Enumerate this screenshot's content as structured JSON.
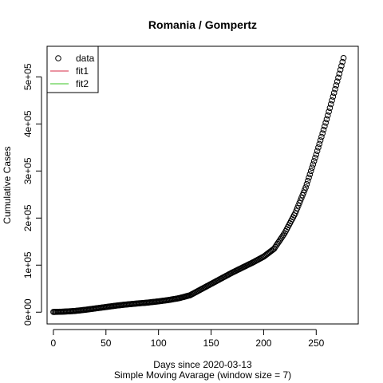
{
  "chart_data": {
    "type": "scatter",
    "title": "Romania / Gompertz",
    "xlabel": "Days since 2020-03-13",
    "sublabel": "Simple Moving Avarage (window size = 7)",
    "ylabel": "Cumulative Cases",
    "xlim": [
      -6,
      290
    ],
    "ylim": [
      -25000,
      565000
    ],
    "xticks": [
      0,
      50,
      100,
      150,
      200,
      250
    ],
    "xtick_labels": [
      "0",
      "50",
      "100",
      "150",
      "200",
      "250"
    ],
    "yticks": [
      0,
      100000,
      200000,
      300000,
      400000,
      500000
    ],
    "ytick_labels": [
      "0e+00",
      "1e+05",
      "2e+05",
      "3e+05",
      "4e+05",
      "5e+05"
    ],
    "grid": false,
    "legend_position": "top-left",
    "legend": [
      {
        "label": "data",
        "kind": "point",
        "color": "#000000"
      },
      {
        "label": "fit1",
        "kind": "line",
        "color": "#DF536B"
      },
      {
        "label": "fit2",
        "kind": "line",
        "color": "#61D04F"
      }
    ],
    "series": [
      {
        "name": "data",
        "marker": "open-circle",
        "color": "#000000",
        "x_start": 0,
        "x_end": 276,
        "anchors_x": [
          0,
          10,
          20,
          30,
          40,
          50,
          60,
          70,
          80,
          90,
          100,
          110,
          120,
          130,
          140,
          150,
          160,
          170,
          180,
          190,
          200,
          210,
          220,
          230,
          240,
          250,
          260,
          270,
          276
        ],
        "anchors_y": [
          500,
          1200,
          2500,
          5000,
          8000,
          11000,
          14000,
          16500,
          18500,
          20500,
          23000,
          26000,
          30000,
          36000,
          48000,
          60000,
          72000,
          84000,
          95000,
          106000,
          118000,
          135000,
          168000,
          210000,
          265000,
          335000,
          410000,
          490000,
          540000
        ]
      }
    ]
  }
}
